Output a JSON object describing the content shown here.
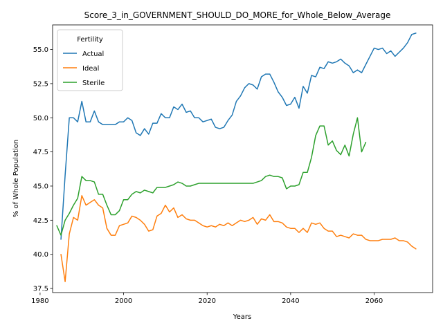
{
  "chart_data": {
    "type": "line",
    "title": "Score_3_in_GOVERNMENT_SHOULD_DO_MORE_for_Whole_Below_Average",
    "xlabel": "Years",
    "ylabel": "% of Whole Population",
    "xlim": [
      1983,
      2074
    ],
    "ylim": [
      37.2,
      56.8
    ],
    "xticks": [
      1980,
      2000,
      2020,
      2040,
      2060
    ],
    "yticks": [
      37.5,
      40.0,
      42.5,
      45.0,
      47.5,
      50.0,
      52.5,
      55.0
    ],
    "xtick_labels": [
      "1980",
      "2000",
      "2020",
      "2040",
      "2060"
    ],
    "ytick_labels": [
      "37.5",
      "40.0",
      "42.5",
      "45.0",
      "47.5",
      "50.0",
      "52.5",
      "55.0"
    ],
    "legend": {
      "title": "Fertility",
      "placement": "top-left"
    },
    "grid": false,
    "series": [
      {
        "name": "Actual",
        "color": "#1f77b4",
        "x_start": 1985,
        "values": [
          41.1,
          45.8,
          50.0,
          50.0,
          49.7,
          51.2,
          49.7,
          49.7,
          50.5,
          49.7,
          49.5,
          49.5,
          49.5,
          49.5,
          49.7,
          49.7,
          50.0,
          49.8,
          48.9,
          48.7,
          49.2,
          48.8,
          49.6,
          49.6,
          50.3,
          50.0,
          50.0,
          50.8,
          50.6,
          51.0,
          50.4,
          50.5,
          50.0,
          50.0,
          49.7,
          49.8,
          49.9,
          49.3,
          49.2,
          49.3,
          49.8,
          50.2,
          51.2,
          51.6,
          52.2,
          52.5,
          52.4,
          52.1,
          53.0,
          53.2,
          53.2,
          52.6,
          51.9,
          51.5,
          50.9,
          51.0,
          51.5,
          50.7,
          52.3,
          51.8,
          53.1,
          53.0,
          53.7,
          53.6,
          54.1,
          54.0,
          54.1,
          54.3,
          54.0,
          53.8,
          53.3,
          53.5,
          53.3,
          53.9,
          54.5,
          55.1,
          55.0,
          55.1,
          54.7,
          54.9,
          54.5,
          54.8,
          55.1,
          55.5,
          56.1,
          56.2
        ]
      },
      {
        "name": "Ideal",
        "color": "#ff7f0e",
        "x_start": 1985,
        "values": [
          40.0,
          38.0,
          41.5,
          42.7,
          42.5,
          44.3,
          43.6,
          43.8,
          44.0,
          43.6,
          43.4,
          41.9,
          41.4,
          41.4,
          42.1,
          42.2,
          42.3,
          42.8,
          42.7,
          42.5,
          42.2,
          41.7,
          41.8,
          42.8,
          43.0,
          43.6,
          43.1,
          43.4,
          42.7,
          42.9,
          42.6,
          42.5,
          42.5,
          42.3,
          42.1,
          42.0,
          42.1,
          42.0,
          42.2,
          42.1,
          42.3,
          42.1,
          42.3,
          42.5,
          42.4,
          42.5,
          42.7,
          42.2,
          42.6,
          42.5,
          42.9,
          42.4,
          42.4,
          42.3,
          42.0,
          41.9,
          41.9,
          41.6,
          41.9,
          41.6,
          42.3,
          42.2,
          42.3,
          41.9,
          41.7,
          41.7,
          41.3,
          41.4,
          41.3,
          41.2,
          41.5,
          41.4,
          41.4,
          41.1,
          41.0,
          41.0,
          41.0,
          41.1,
          41.1,
          41.1,
          41.2,
          41.0,
          41.0,
          40.9,
          40.6,
          40.4
        ]
      },
      {
        "name": "Sterile",
        "color": "#2ca02c",
        "x_start": 1984,
        "values": [
          42.1,
          41.4,
          42.5,
          43.0,
          43.6,
          44.1,
          45.7,
          45.4,
          45.4,
          45.3,
          44.4,
          44.4,
          43.6,
          42.9,
          42.9,
          43.2,
          44.0,
          44.0,
          44.4,
          44.6,
          44.5,
          44.7,
          44.6,
          44.5,
          44.9,
          44.9,
          44.9,
          45.0,
          45.1,
          45.3,
          45.2,
          45.0,
          45.0,
          45.1,
          45.2,
          45.2,
          45.2,
          45.2,
          45.2,
          45.2,
          45.2,
          45.2,
          45.2,
          45.2,
          45.2,
          45.2,
          45.2,
          45.2,
          45.3,
          45.4,
          45.7,
          45.8,
          45.7,
          45.7,
          45.6,
          44.8,
          45.0,
          45.0,
          45.1,
          46.0,
          46.0,
          47.1,
          48.7,
          49.4,
          49.4,
          48.0,
          48.3,
          47.6,
          47.3,
          48.0,
          47.2,
          48.8,
          50.0,
          47.5,
          48.2
        ]
      }
    ]
  }
}
